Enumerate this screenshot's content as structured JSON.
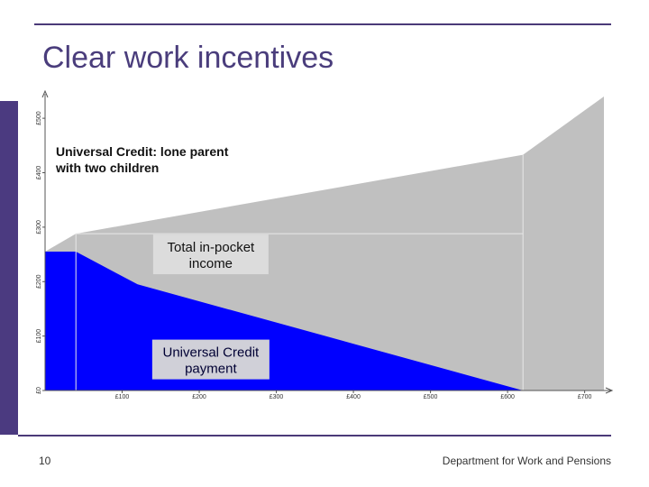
{
  "slide": {
    "title": "Clear work incentives",
    "page_number": "10",
    "footer": "Department for Work and Pensions"
  },
  "colors": {
    "accent": "#4b3a80",
    "title": "#4a3d7c",
    "uc_payment": "#0000ff",
    "income": "#c0c0c0"
  },
  "chart_data": {
    "type": "area",
    "title": "Universal Credit: lone parent\nwith two children",
    "xlabel": "",
    "ylabel": "",
    "xlim": [
      0,
      725
    ],
    "ylim": [
      0,
      535
    ],
    "x_ticks": [
      {
        "value": 100,
        "label": "£100"
      },
      {
        "value": 200,
        "label": "£200"
      },
      {
        "value": 300,
        "label": "£300"
      },
      {
        "value": 400,
        "label": "£400"
      },
      {
        "value": 500,
        "label": "£500"
      },
      {
        "value": 600,
        "label": "£600"
      },
      {
        "value": 700,
        "label": "£700"
      }
    ],
    "y_ticks": [
      {
        "value": 0,
        "label": "£0"
      },
      {
        "value": 100,
        "label": "£100"
      },
      {
        "value": 200,
        "label": "£200"
      },
      {
        "value": 300,
        "label": "£300"
      },
      {
        "value": 400,
        "label": "£400"
      },
      {
        "value": 500,
        "label": "£500"
      }
    ],
    "series": [
      {
        "name": "Total in-pocket income",
        "color": "#c0c0c0",
        "x": [
          0,
          40,
          620,
          725
        ],
        "y": [
          255,
          288,
          433,
          540
        ]
      },
      {
        "name": "Universal Credit payment",
        "color": "#0000ff",
        "x": [
          0,
          40,
          120,
          620
        ],
        "y": [
          255,
          255,
          195,
          0
        ]
      }
    ],
    "annotations": [
      {
        "text": "Total in-pocket\nincome",
        "x": 215,
        "y": 250
      },
      {
        "text": "Universal Credit\npayment",
        "x": 215,
        "y": 57
      }
    ],
    "grid": false,
    "legend": "none"
  }
}
